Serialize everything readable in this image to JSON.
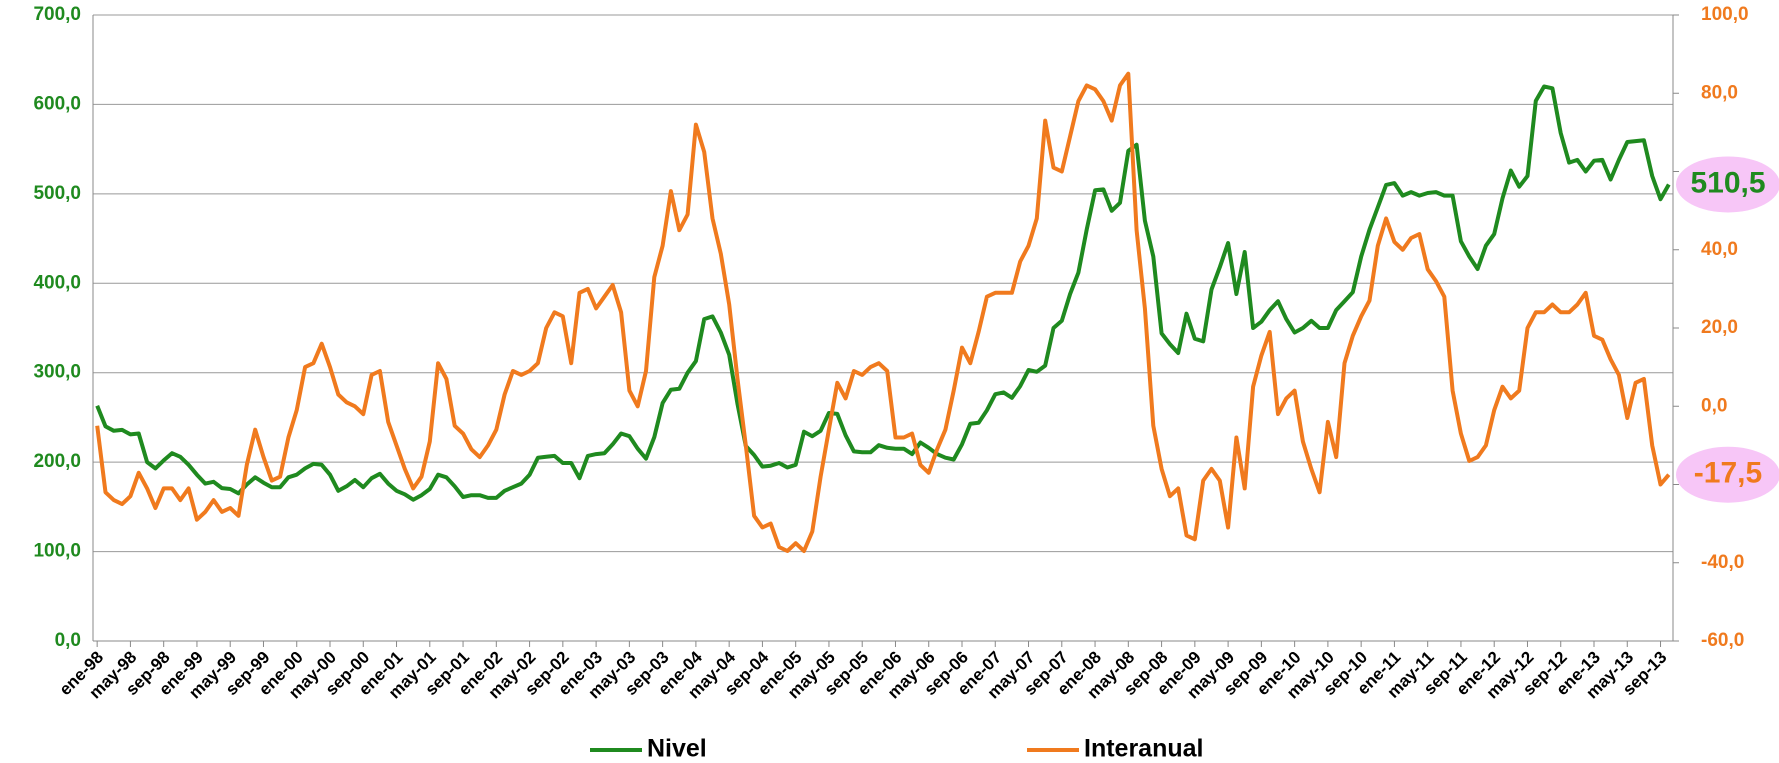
{
  "chart_data": {
    "type": "line",
    "categories": [
      "ene-98",
      null,
      null,
      null,
      "may-98",
      null,
      null,
      null,
      "sep-98",
      null,
      null,
      null,
      "ene-99",
      null,
      null,
      null,
      "may-99",
      null,
      null,
      null,
      "sep-99",
      null,
      null,
      null,
      "ene-00",
      null,
      null,
      null,
      "may-00",
      null,
      null,
      null,
      "sep-00",
      null,
      null,
      null,
      "ene-01",
      null,
      null,
      null,
      "may-01",
      null,
      null,
      null,
      "sep-01",
      null,
      null,
      null,
      "ene-02",
      null,
      null,
      null,
      "may-02",
      null,
      null,
      null,
      "sep-02",
      null,
      null,
      null,
      "ene-03",
      null,
      null,
      null,
      "may-03",
      null,
      null,
      null,
      "sep-03",
      null,
      null,
      null,
      "ene-04",
      null,
      null,
      null,
      "may-04",
      null,
      null,
      null,
      "sep-04",
      null,
      null,
      null,
      "ene-05",
      null,
      null,
      null,
      "may-05",
      null,
      null,
      null,
      "sep-05",
      null,
      null,
      null,
      "ene-06",
      null,
      null,
      null,
      "may-06",
      null,
      null,
      null,
      "sep-06",
      null,
      null,
      null,
      "ene-07",
      null,
      null,
      null,
      "may-07",
      null,
      null,
      null,
      "sep-07",
      null,
      null,
      null,
      "ene-08",
      null,
      null,
      null,
      "may-08",
      null,
      null,
      null,
      "sep-08",
      null,
      null,
      null,
      "ene-09",
      null,
      null,
      null,
      "may-09",
      null,
      null,
      null,
      "sep-09",
      null,
      null,
      null,
      "ene-10",
      null,
      null,
      null,
      "may-10",
      null,
      null,
      null,
      "sep-10",
      null,
      null,
      null,
      "ene-11",
      null,
      null,
      null,
      "may-11",
      null,
      null,
      null,
      "sep-11",
      null,
      null,
      null,
      "ene-12",
      null,
      null,
      null,
      "may-12",
      null,
      null,
      null,
      "sep-12",
      null,
      null,
      null,
      "ene-13",
      null,
      null,
      null,
      "may-13",
      null,
      null,
      null,
      "sep-13",
      null
    ],
    "series": [
      {
        "name": "Nivel",
        "color": "#1f8a1f",
        "axis": "y",
        "values": [
          263,
          240,
          235,
          236,
          231,
          232,
          200,
          193,
          202,
          210,
          206,
          197,
          186,
          176,
          178,
          171,
          170,
          165,
          175,
          183,
          177,
          172,
          172,
          183,
          186,
          193,
          198,
          197,
          186,
          168,
          173,
          180,
          172,
          182,
          187,
          176,
          168,
          164,
          158,
          163,
          170,
          186,
          183,
          173,
          161,
          163,
          163,
          160,
          160,
          168,
          172,
          176,
          186,
          205,
          206,
          207,
          199,
          199,
          182,
          207,
          209,
          210,
          220,
          232,
          229,
          215,
          204,
          228,
          266,
          281,
          282,
          300,
          313,
          360,
          363,
          345,
          320,
          265,
          218,
          208,
          195,
          196,
          199,
          194,
          197,
          234,
          229,
          235,
          255,
          254,
          230,
          212,
          211,
          211,
          219,
          216,
          215,
          215,
          209,
          222,
          216,
          209,
          205,
          203,
          220,
          243,
          244,
          258,
          276,
          278,
          272,
          285,
          303,
          301,
          308,
          350,
          358,
          388,
          412,
          460,
          504,
          505,
          481,
          490,
          548,
          555,
          470,
          430,
          344,
          332,
          322,
          366,
          338,
          335,
          393,
          418,
          445,
          388,
          435,
          350,
          357,
          370,
          380,
          360,
          345,
          350,
          358,
          350,
          350,
          370,
          380,
          390,
          430,
          460,
          485,
          510,
          512,
          498,
          502,
          498,
          501,
          502,
          498,
          498,
          447,
          430,
          416,
          442,
          455,
          495,
          526,
          508,
          520,
          604,
          620,
          618,
          568,
          535,
          538,
          525,
          537,
          538,
          516,
          538,
          558,
          559,
          560,
          520,
          494,
          510.5
        ],
        "value_labels": [
          null,
          null,
          null,
          null,
          null,
          null,
          null,
          null,
          null,
          null,
          null,
          null,
          null,
          null,
          null,
          null,
          null,
          null,
          null,
          null,
          null,
          null,
          null,
          null,
          null,
          null,
          null,
          null,
          null,
          null,
          null,
          null,
          null,
          null,
          null,
          null,
          null,
          null,
          null,
          null,
          null,
          null,
          null,
          null,
          null,
          null,
          null,
          null,
          null,
          null,
          null,
          null,
          null,
          null,
          null,
          null,
          null,
          null,
          null,
          null,
          null,
          null,
          null,
          null,
          null,
          null,
          null,
          null,
          null,
          null,
          null,
          null,
          null,
          null,
          null,
          null,
          null,
          null,
          null,
          null,
          null,
          null,
          null,
          null,
          null,
          null,
          null,
          null,
          null,
          null,
          null,
          null,
          null,
          null,
          null,
          null,
          null,
          null,
          null,
          null,
          null,
          null,
          null,
          null,
          null,
          null,
          null,
          null,
          null,
          null,
          null,
          null,
          null,
          null,
          null,
          null,
          null,
          null,
          null,
          null,
          null,
          null,
          null,
          null,
          null,
          null,
          null,
          null,
          null,
          null,
          null,
          null,
          null,
          null,
          null,
          null,
          null,
          null,
          null,
          null,
          null,
          null,
          null,
          null,
          null,
          null,
          null,
          null,
          null,
          null,
          null,
          null,
          null,
          null,
          null,
          null,
          null,
          null,
          null,
          null,
          null,
          null,
          null,
          null,
          null,
          null,
          null,
          null,
          null,
          null,
          null,
          null,
          null,
          null,
          null,
          null,
          null,
          null,
          null,
          null,
          null,
          null,
          null,
          null,
          null,
          null,
          null,
          null,
          null,
          "510,5"
        ]
      },
      {
        "name": "Interanual",
        "color": "#f07a1e",
        "axis": "y2",
        "values": [
          -5,
          -22,
          -24,
          -25,
          -23,
          -17,
          -21,
          -26,
          -21,
          -21,
          -24,
          -21,
          -29,
          -27,
          -24,
          -27,
          -26,
          -28,
          -15,
          -6,
          -13,
          -19,
          -18,
          -8,
          -1,
          10,
          11,
          16,
          10,
          3,
          1,
          0,
          -2,
          8,
          9,
          -4,
          -10,
          -16,
          -21,
          -18,
          -9,
          11,
          7,
          -5,
          -7,
          -11,
          -13,
          -10,
          -6,
          3,
          9,
          8,
          9,
          11,
          20,
          24,
          23,
          11,
          29,
          30,
          25,
          28,
          31,
          24,
          4,
          0,
          9,
          33,
          41,
          55,
          45,
          49,
          72,
          65,
          48,
          39,
          26,
          7,
          -10,
          -28,
          -31,
          -30,
          -36,
          -37,
          -35,
          -37,
          -32,
          -18,
          -6,
          6,
          2,
          9,
          8,
          10,
          11,
          9,
          -8,
          -8,
          -7,
          -15,
          -17,
          -11,
          -6,
          4,
          15,
          11,
          19,
          28,
          29,
          29,
          29,
          37,
          41,
          48,
          73,
          61,
          60,
          69,
          78,
          82,
          81,
          78,
          73,
          82,
          85,
          45,
          25,
          -5,
          -16,
          -23,
          -21,
          -33,
          -34,
          -19,
          -16,
          -19,
          -31,
          -8,
          -21,
          5,
          13,
          19,
          -2,
          2,
          4,
          -9,
          -16,
          -22,
          -4,
          -13,
          11,
          18,
          23,
          27,
          41,
          48,
          42,
          40,
          43,
          44,
          35,
          32,
          28,
          4,
          -7,
          -14,
          -13,
          -10,
          -1,
          5,
          2,
          4,
          20,
          24,
          24,
          26,
          24,
          24,
          26,
          29,
          18,
          17,
          12,
          8,
          -3,
          6,
          7,
          -10,
          -20,
          -17.5
        ],
        "value_labels": [
          null,
          null,
          null,
          null,
          null,
          null,
          null,
          null,
          null,
          null,
          null,
          null,
          null,
          null,
          null,
          null,
          null,
          null,
          null,
          null,
          null,
          null,
          null,
          null,
          null,
          null,
          null,
          null,
          null,
          null,
          null,
          null,
          null,
          null,
          null,
          null,
          null,
          null,
          null,
          null,
          null,
          null,
          null,
          null,
          null,
          null,
          null,
          null,
          null,
          null,
          null,
          null,
          null,
          null,
          null,
          null,
          null,
          null,
          null,
          null,
          null,
          null,
          null,
          null,
          null,
          null,
          null,
          null,
          null,
          null,
          null,
          null,
          null,
          null,
          null,
          null,
          null,
          null,
          null,
          null,
          null,
          null,
          null,
          null,
          null,
          null,
          null,
          null,
          null,
          null,
          null,
          null,
          null,
          null,
          null,
          null,
          null,
          null,
          null,
          null,
          null,
          null,
          null,
          null,
          null,
          null,
          null,
          null,
          null,
          null,
          null,
          null,
          null,
          null,
          null,
          null,
          null,
          null,
          null,
          null,
          null,
          null,
          null,
          null,
          null,
          null,
          null,
          null,
          null,
          null,
          null,
          null,
          null,
          null,
          null,
          null,
          null,
          null,
          null,
          null,
          null,
          null,
          null,
          null,
          null,
          null,
          null,
          null,
          null,
          null,
          null,
          null,
          null,
          null,
          null,
          null,
          null,
          null,
          null,
          null,
          null,
          null,
          null,
          null,
          null,
          null,
          null,
          null,
          null,
          null,
          null,
          null,
          null,
          null,
          null,
          null,
          null,
          null,
          null,
          null,
          null,
          null,
          null,
          null,
          null,
          null,
          null,
          null,
          null,
          "-17,5"
        ]
      }
    ],
    "ylim": [
      0,
      700
    ],
    "yticks": [
      {
        "value": 0,
        "label": "0,0"
      },
      {
        "value": 100,
        "label": "100,0"
      },
      {
        "value": 200,
        "label": "200,0"
      },
      {
        "value": 300,
        "label": "300,0"
      },
      {
        "value": 400,
        "label": "400,0"
      },
      {
        "value": 500,
        "label": "500,0"
      },
      {
        "value": 600,
        "label": "600,0"
      },
      {
        "value": 700,
        "label": "700,0"
      }
    ],
    "y2lim": [
      -60,
      100
    ],
    "y2ticks": [
      {
        "value": -60,
        "label": "-60,0"
      },
      {
        "value": -40,
        "label": "-40,0"
      },
      {
        "value": -20,
        "label": "-20,0"
      },
      {
        "value": 0,
        "label": "0,0"
      },
      {
        "value": 20,
        "label": "20,0"
      },
      {
        "value": 40,
        "label": "40,0"
      },
      {
        "value": 60,
        "label": "60,0"
      },
      {
        "value": 80,
        "label": "80,0"
      },
      {
        "value": 100,
        "label": "100,0"
      }
    ],
    "grid": true,
    "legend": "bottom"
  }
}
